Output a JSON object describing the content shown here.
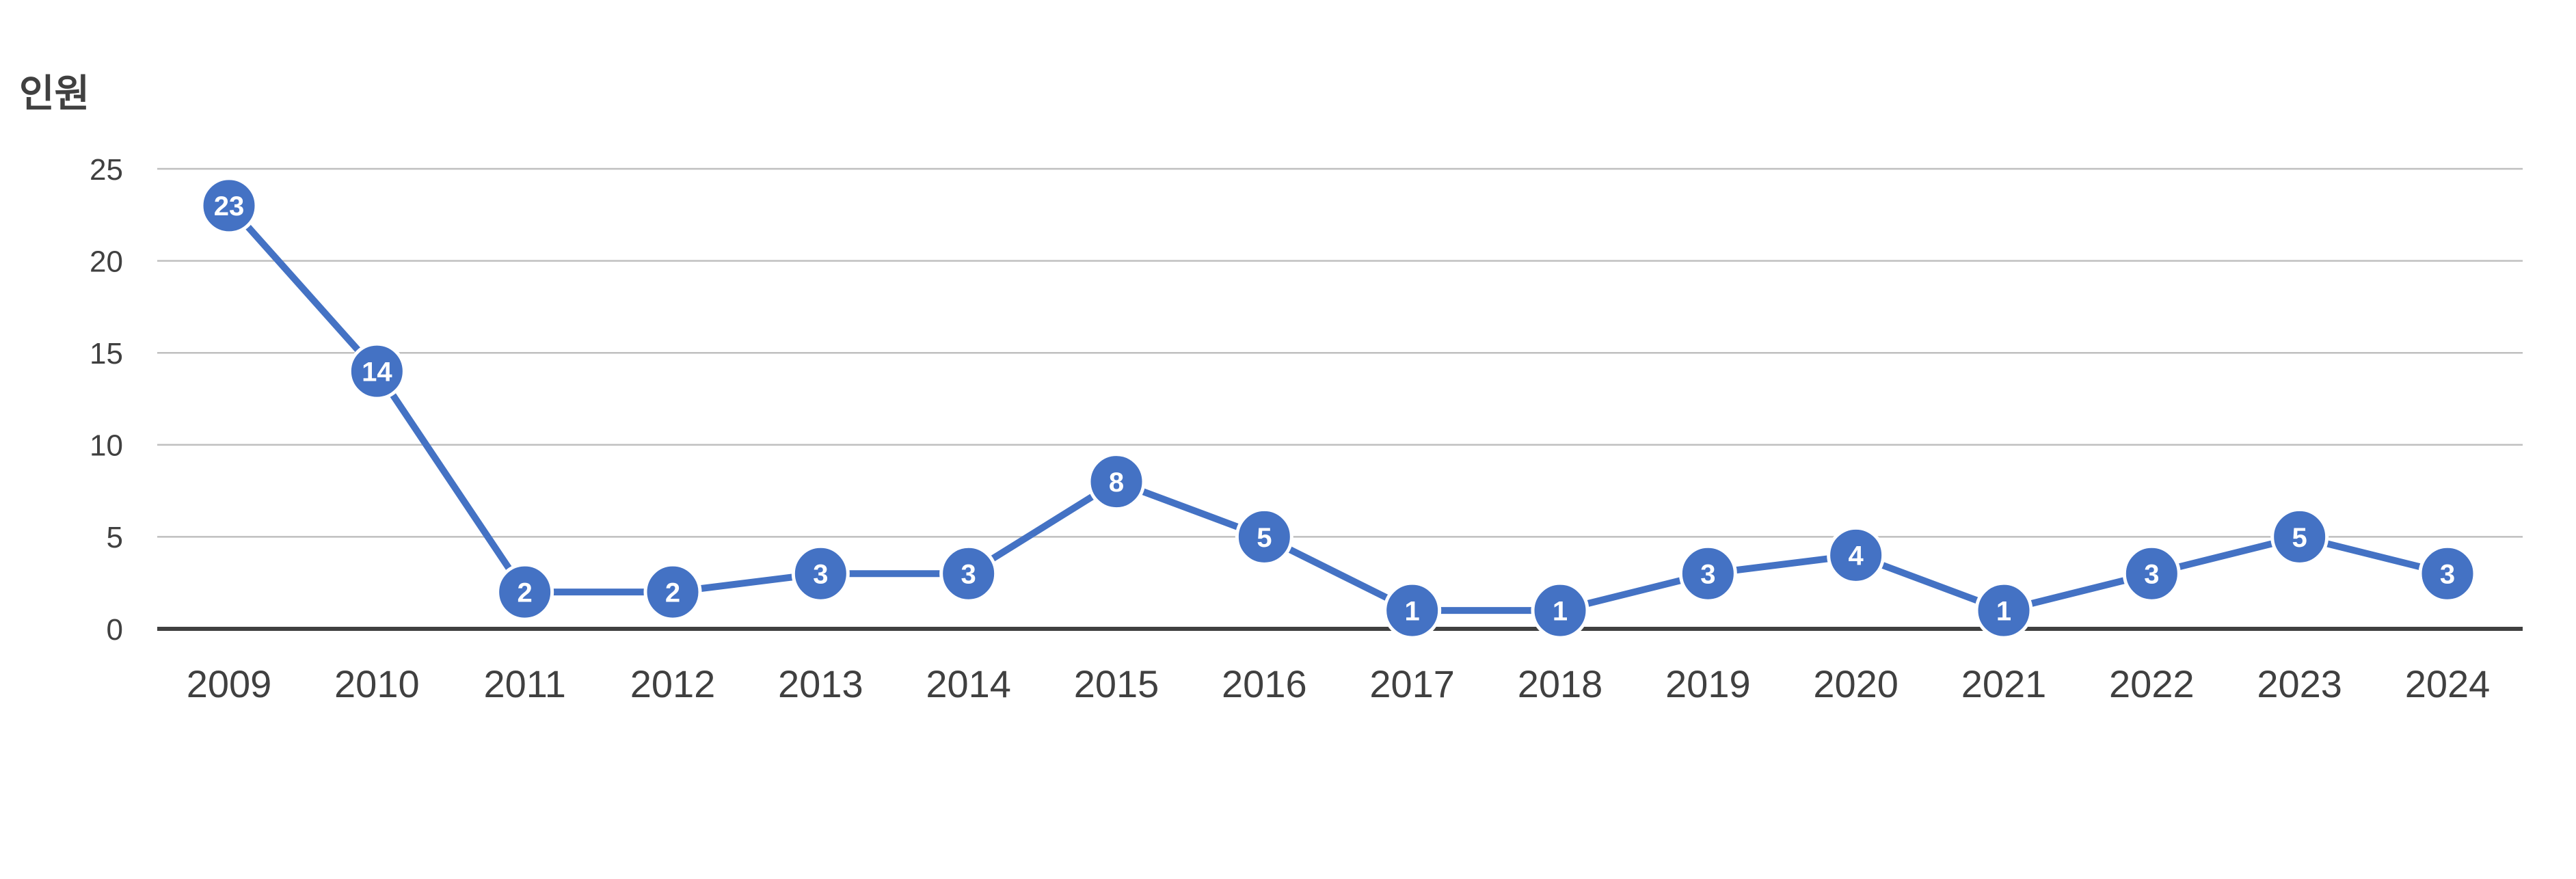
{
  "colors": {
    "series": "#4472C4",
    "grid": "#BFBFBF",
    "baseline": "#404040",
    "tick_text": "#404040",
    "label_text": "#FFFFFF"
  },
  "chart_data": {
    "type": "line",
    "ylabel": "인원",
    "xlabel": "",
    "ylim": [
      0,
      25
    ],
    "yticks": [
      "0",
      "5",
      "10",
      "15",
      "20",
      "25"
    ],
    "grid": true,
    "legend": "none",
    "categories": [
      "2009",
      "2010",
      "2011",
      "2012",
      "2013",
      "2014",
      "2015",
      "2016",
      "2017",
      "2018",
      "2019",
      "2020",
      "2021",
      "2022",
      "2023",
      "2024"
    ],
    "series": [
      {
        "values": [
          23,
          14,
          2,
          2,
          3,
          3,
          8,
          5,
          1,
          1,
          3,
          4,
          1,
          3,
          5,
          3
        ],
        "data_labels": [
          "23",
          "14",
          "2",
          "2",
          "3",
          "3",
          "8",
          "5",
          "1",
          "1",
          "3",
          "4",
          "1",
          "3",
          "5",
          "3"
        ]
      }
    ]
  }
}
